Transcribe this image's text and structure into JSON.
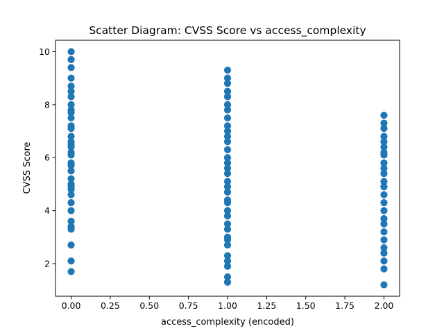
{
  "chart_data": {
    "type": "scatter",
    "title": "Scatter Diagram: CVSS Score vs access_complexity",
    "xlabel": "access_complexity (encoded)",
    "ylabel": "CVSS Score",
    "xlim": [
      -0.1,
      2.1
    ],
    "ylim": [
      0.77,
      10.43
    ],
    "x_ticks": [
      0.0,
      0.25,
      0.5,
      0.75,
      1.0,
      1.25,
      1.5,
      1.75,
      2.0
    ],
    "x_tick_labels": [
      "0.00",
      "0.25",
      "0.50",
      "0.75",
      "1.00",
      "1.25",
      "1.50",
      "1.75",
      "2.00"
    ],
    "y_ticks": [
      2,
      4,
      6,
      8,
      10
    ],
    "y_tick_labels": [
      "2",
      "4",
      "6",
      "8",
      "10"
    ],
    "grid": false,
    "point_color": "#1f77b4",
    "series": [
      {
        "name": "access_complexity = 0",
        "x": 0,
        "y": [
          10.0,
          9.7,
          9.4,
          9.0,
          8.7,
          8.5,
          8.3,
          8.0,
          7.8,
          7.7,
          7.5,
          7.2,
          7.1,
          6.8,
          6.6,
          6.5,
          6.4,
          6.2,
          6.1,
          5.8,
          5.7,
          5.5,
          5.2,
          5.0,
          4.9,
          4.8,
          4.6,
          4.3,
          4.0,
          3.6,
          3.4,
          3.3,
          2.7,
          2.1,
          1.7
        ]
      },
      {
        "name": "access_complexity = 1",
        "x": 1,
        "y": [
          9.3,
          9.0,
          8.8,
          8.5,
          8.3,
          8.0,
          7.8,
          7.5,
          7.2,
          7.0,
          6.8,
          6.6,
          6.3,
          6.0,
          5.8,
          5.6,
          5.4,
          5.1,
          4.9,
          4.7,
          4.4,
          4.3,
          4.0,
          3.8,
          3.5,
          3.3,
          3.0,
          2.9,
          2.7,
          2.3,
          2.1,
          1.9,
          1.5,
          1.3
        ]
      },
      {
        "name": "access_complexity = 2",
        "x": 2,
        "y": [
          7.6,
          7.3,
          7.1,
          6.8,
          6.6,
          6.4,
          6.2,
          6.1,
          5.8,
          5.6,
          5.4,
          5.1,
          4.9,
          4.6,
          4.3,
          4.0,
          3.7,
          3.5,
          3.2,
          2.9,
          2.6,
          2.4,
          2.1,
          1.8,
          1.2
        ]
      }
    ]
  }
}
